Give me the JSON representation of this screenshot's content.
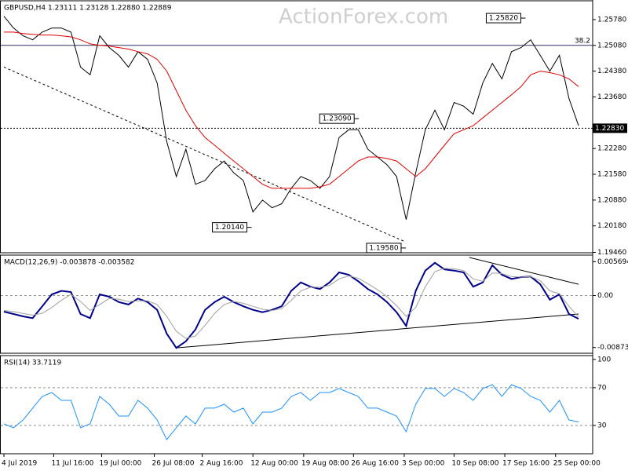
{
  "chart_data": [
    {
      "type": "line",
      "title": "GBPUSD,H4  1.23111 1.23128 1.22880 1.22889",
      "watermark": "ActionForex.com",
      "ylim": [
        1.1945,
        1.2629
      ],
      "yticks": [
        {
          "value": 1.2578,
          "label": "1.25780"
        },
        {
          "value": 1.2508,
          "label": "1.25080"
        },
        {
          "value": 1.2438,
          "label": "1.24380"
        },
        {
          "value": 1.2368,
          "label": "1.23680"
        },
        {
          "value": 1.2228,
          "label": "1.22280"
        },
        {
          "value": 1.2158,
          "label": "1.21580"
        },
        {
          "value": 1.2088,
          "label": "1.20880"
        },
        {
          "value": 1.2018,
          "label": "1.20180"
        },
        {
          "value": 1.1946,
          "label": "1.19460"
        }
      ],
      "series": [
        {
          "color": "#000000",
          "values": [
            1.2587,
            1.2555,
            1.2534,
            1.2523,
            1.2544,
            1.2555,
            1.2555,
            1.2544,
            1.2449,
            1.2428,
            1.2534,
            1.2502,
            1.2481,
            1.2449,
            1.2491,
            1.247,
            1.2406,
            1.2247,
            1.2152,
            1.2226,
            1.2131,
            1.2141,
            1.2173,
            1.2194,
            1.2162,
            1.2141,
            1.2056,
            1.2088,
            1.2067,
            1.2078,
            1.212,
            1.2152,
            1.2141,
            1.212,
            1.2152,
            1.2258,
            1.2279,
            1.2279,
            1.2226,
            1.2205,
            1.2184,
            1.2152,
            1.2035,
            1.2162,
            1.2279,
            1.2332,
            1.2279,
            1.2353,
            1.2343,
            1.2321,
            1.2406,
            1.2459,
            1.2417,
            1.2491,
            1.2502,
            1.2523,
            1.2481,
            1.2438,
            1.2481,
            1.2364,
            1.229
          ]
        },
        {
          "color": "#e00000",
          "values": [
            1.2544,
            1.2544,
            1.254,
            1.2538,
            1.2536,
            1.2536,
            1.2534,
            1.2531,
            1.2523,
            1.2512,
            1.2508,
            1.2506,
            1.2502,
            1.2498,
            1.2491,
            1.2485,
            1.247,
            1.2438,
            1.2385,
            1.2332,
            1.229,
            1.2258,
            1.2237,
            1.2215,
            1.2194,
            1.2173,
            1.2152,
            1.2131,
            1.212,
            1.212,
            1.212,
            1.212,
            1.212,
            1.2124,
            1.2131,
            1.2152,
            1.2173,
            1.2194,
            1.2205,
            1.2205,
            1.2201,
            1.2194,
            1.2173,
            1.2152,
            1.2173,
            1.2205,
            1.2237,
            1.2268,
            1.2279,
            1.229,
            1.2311,
            1.2332,
            1.2353,
            1.2374,
            1.2396,
            1.2428,
            1.2438,
            1.2434,
            1.2428,
            1.2417,
            1.2396
          ]
        }
      ],
      "hlines": [
        {
          "value": 1.2508,
          "label": "38.2",
          "dash": false
        },
        {
          "value": 1.2283,
          "label": "1.22830",
          "dash": true
        }
      ],
      "annotations": [
        {
          "value": 1.2582,
          "label": "1.25820",
          "x": 54.3
        },
        {
          "value": 1.2309,
          "label": "1.23090",
          "x": 36.9
        },
        {
          "value": 1.2014,
          "label": "1.20140",
          "x": 25.7
        },
        {
          "value": 1.1958,
          "label": "1.19580",
          "x": 41.8
        }
      ],
      "lines": [
        {
          "x": [
            0,
            41.8
          ],
          "y": [
            1.2449,
            1.1976
          ],
          "color": "#000000",
          "dash": true
        }
      ]
    },
    {
      "type": "line",
      "title": "MACD(12,26,9) -0.003878 -0.003582",
      "ylim": [
        -0.0097,
        0.0068
      ],
      "yticks": [
        0.005694,
        {
          "value": 0,
          "label": "0.00"
        },
        -0.008737
      ],
      "levels": [
        0
      ],
      "series": [
        {
          "color": "#00008b",
          "values": [
            -0.0027,
            -0.0031,
            -0.0035,
            -0.0038,
            -0.0018,
            0.0002,
            0.0008,
            0.0006,
            -0.0031,
            -0.0038,
            0.0002,
            -0.0002,
            -0.0011,
            -0.0015,
            -0.0005,
            -0.0011,
            -0.0024,
            -0.0064,
            -0.0088,
            -0.0077,
            -0.0057,
            -0.0024,
            -0.0011,
            -0.0002,
            -0.0011,
            -0.0018,
            -0.0024,
            -0.0028,
            -0.0024,
            -0.0018,
            0.0008,
            0.0022,
            0.0015,
            0.0011,
            0.0022,
            0.0039,
            0.0035,
            0.0024,
            0.0011,
            0.0002,
            -0.0011,
            -0.0028,
            -0.0051,
            0.0008,
            0.0042,
            0.0055,
            0.0044,
            0.0042,
            0.0039,
            0.0015,
            0.0022,
            0.0051,
            0.0035,
            0.0028,
            0.0031,
            0.0032,
            0.0019,
            -0.0007,
            0.0002,
            -0.0031,
            -0.0039
          ]
        },
        {
          "color": "#a0a0a0",
          "values": [
            -0.0025,
            -0.0027,
            -0.003,
            -0.0033,
            -0.003,
            -0.002,
            -0.0008,
            0.0002,
            -0.001,
            -0.0025,
            -0.0015,
            -0.0005,
            -0.0006,
            -0.001,
            -0.0009,
            -0.0009,
            -0.0015,
            -0.0035,
            -0.006,
            -0.0072,
            -0.0068,
            -0.005,
            -0.003,
            -0.0015,
            -0.001,
            -0.0013,
            -0.0018,
            -0.0023,
            -0.0025,
            -0.0022,
            -0.0008,
            0.0008,
            0.0014,
            0.0014,
            0.0017,
            0.0028,
            0.0033,
            0.0029,
            0.002,
            0.001,
            -0.0002,
            -0.0017,
            -0.0035,
            -0.002,
            0.0015,
            0.004,
            0.0046,
            0.0045,
            0.0042,
            0.0028,
            0.0024,
            0.0038,
            0.0037,
            0.0032,
            0.0031,
            0.0032,
            0.0025,
            0.0008,
            0.0003,
            -0.0018,
            -0.0036
          ]
        }
      ],
      "lines": [
        {
          "x": [
            18,
            60
          ],
          "y": [
            -0.0088,
            -0.0031
          ],
          "color": "#000000",
          "dash": false
        },
        {
          "x": [
            48.6,
            60
          ],
          "y": [
            0.0064,
            0.0019
          ],
          "color": "#000000",
          "dash": false
        }
      ]
    },
    {
      "type": "line",
      "title": "RSI(14) 33.7119",
      "ylim": [
        0,
        104
      ],
      "yticks": [
        100,
        70,
        30
      ],
      "levels": [
        70,
        30
      ],
      "xlim": [
        0,
        60
      ],
      "xticks": [
        {
          "value": 0,
          "label": "4 Jul 2019"
        },
        {
          "value": 5.2,
          "label": "11 Jul 16:00"
        },
        {
          "value": 10.2,
          "label": "19 Jul 00:00"
        },
        {
          "value": 15.7,
          "label": "26 Jul 08:00"
        },
        {
          "value": 20.7,
          "label": "2 Aug 16:00"
        },
        {
          "value": 26,
          "label": "12 Aug 00:00"
        },
        {
          "value": 31.3,
          "label": "19 Aug 08:00"
        },
        {
          "value": 36.5,
          "label": "26 Aug 16:00"
        },
        {
          "value": 41.8,
          "label": "3 Sep 00:00"
        },
        {
          "value": 47,
          "label": "10 Sep 08:00"
        },
        {
          "value": 52.3,
          "label": "17 Sep 16:00"
        },
        {
          "value": 57.6,
          "label": "25 Sep 00:00"
        }
      ],
      "series": [
        {
          "color": "#1e90ff",
          "values": [
            31.6,
            27.5,
            35.8,
            48.3,
            60.7,
            64.9,
            56.6,
            56.6,
            27.5,
            31.6,
            60.7,
            52.4,
            39.9,
            39.9,
            56.6,
            48.3,
            35.8,
            15.0,
            27.5,
            39.9,
            31.6,
            48.3,
            48.3,
            52.4,
            44.1,
            48.3,
            31.6,
            44.1,
            44.1,
            48.3,
            60.7,
            64.9,
            56.6,
            64.9,
            64.9,
            69.1,
            64.9,
            60.7,
            48.3,
            48.3,
            44.1,
            39.9,
            23.3,
            52.4,
            69.1,
            69.1,
            60.7,
            69.1,
            64.9,
            56.6,
            69.1,
            73.2,
            60.7,
            73.2,
            69.1,
            60.7,
            56.6,
            44.1,
            56.6,
            35.8,
            33.7
          ]
        }
      ]
    }
  ]
}
